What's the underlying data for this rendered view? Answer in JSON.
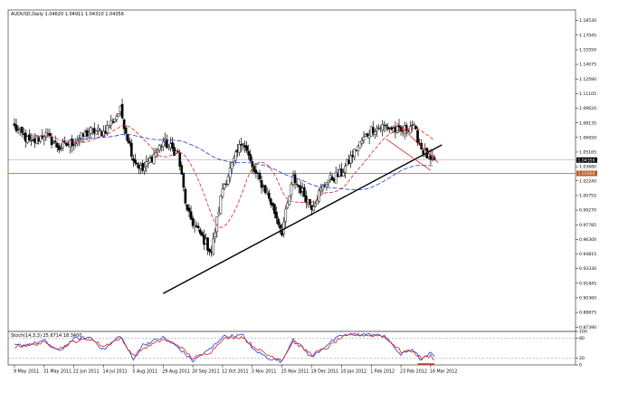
{
  "chart_data": [
    {
      "type": "candlestick",
      "header": "AUDUSD,Daily  1.04620 1.04911 1.04310 1.04356",
      "symbol": "AUDUSD",
      "timeframe": "Daily",
      "ohlc_last": {
        "open": 1.0462,
        "high": 1.04911,
        "low": 1.0431,
        "close": 1.04356
      },
      "ylim": [
        0.8695,
        1.196
      ],
      "y_ticks": [
        "1.18530",
        "1.17045",
        "1.15550",
        "1.14075",
        "1.12590",
        "1.11105",
        "1.09620",
        "1.08135",
        "1.06650",
        "1.05165",
        "1.03680",
        "1.02240",
        "1.00755",
        "0.99270",
        "0.97785",
        "0.96300",
        "0.94815",
        "0.93330",
        "0.91845",
        "0.90360",
        "0.88875",
        "0.87390"
      ],
      "current_price_label": "1.04356",
      "support_price_label": "1.03000",
      "x_ticks": [
        "9 May 2011",
        "31 May 2011",
        "22 Jun 2011",
        "14 Jul 2011",
        "5 Aug 2011",
        "29 Aug 2011",
        "20 Sep 2011",
        "12 Oct 2011",
        "3 Nov 2011",
        "25 Nov 2011",
        "19 Dec 2011",
        "10 Jan 2012",
        "1 Feb 2012",
        "23 Feb 2012",
        "16 Mar 2012"
      ],
      "close_anchors": [
        {
          "date": "9 May 2011",
          "close": 1.077
        },
        {
          "date": "20 May 2011",
          "close": 1.06
        },
        {
          "date": "31 May 2011",
          "close": 1.07
        },
        {
          "date": "10 Jun 2011",
          "close": 1.056
        },
        {
          "date": "22 Jun 2011",
          "close": 1.062
        },
        {
          "date": "5 Jul 2011",
          "close": 1.073
        },
        {
          "date": "14 Jul 2011",
          "close": 1.072
        },
        {
          "date": "27 Jul 2011",
          "close": 1.094
        },
        {
          "date": "5 Aug 2011",
          "close": 1.045
        },
        {
          "date": "12 Aug 2011",
          "close": 1.033
        },
        {
          "date": "29 Aug 2011",
          "close": 1.062
        },
        {
          "date": "8 Sep 2011",
          "close": 1.05
        },
        {
          "date": "15 Sep 2011",
          "close": 0.99
        },
        {
          "date": "20 Sep 2011",
          "close": 0.98
        },
        {
          "date": "4 Oct 2011",
          "close": 0.95
        },
        {
          "date": "12 Oct 2011",
          "close": 1.015
        },
        {
          "date": "27 Oct 2011",
          "close": 1.065
        },
        {
          "date": "3 Nov 2011",
          "close": 1.035
        },
        {
          "date": "15 Nov 2011",
          "close": 1.01
        },
        {
          "date": "25 Nov 2011",
          "close": 0.971
        },
        {
          "date": "5 Dec 2011",
          "close": 1.025
        },
        {
          "date": "19 Dec 2011",
          "close": 0.997
        },
        {
          "date": "29 Dec 2011",
          "close": 1.022
        },
        {
          "date": "10 Jan 2012",
          "close": 1.03
        },
        {
          "date": "20 Jan 2012",
          "close": 1.055
        },
        {
          "date": "1 Feb 2012",
          "close": 1.075
        },
        {
          "date": "10 Feb 2012",
          "close": 1.078
        },
        {
          "date": "23 Feb 2012",
          "close": 1.072
        },
        {
          "date": "2 Mar 2012",
          "close": 1.08
        },
        {
          "date": "9 Mar 2012",
          "close": 1.056
        },
        {
          "date": "16 Mar 2012",
          "close": 1.042
        },
        {
          "date": "20 Mar 2012",
          "close": 1.0436
        }
      ],
      "overlays": {
        "fast_ma": {
          "color": "#e02020",
          "style": "dashed"
        },
        "slow_ma": {
          "color": "#1a3fd8",
          "style": "dashed"
        },
        "support_level": {
          "value": 1.03,
          "color": "#b85a1e"
        },
        "current_level": {
          "value": 1.04356,
          "color": "#9a9a9a"
        },
        "trendline": {
          "color": "#000000",
          "from": {
            "date": "29 Aug 2011",
            "price": 0.908
          },
          "to": {
            "date": "26 Mar 2012",
            "price": 1.059
          }
        },
        "channel": {
          "color": "#e02020",
          "upper": [
            {
              "date": "21 Feb 2012",
              "price": 1.081
            },
            {
              "date": "22 Mar 2012",
              "price": 1.041
            }
          ],
          "lower": [
            {
              "date": "13 Feb 2012",
              "price": 1.065
            },
            {
              "date": "16 Mar 2012",
              "price": 1.033
            }
          ]
        }
      }
    },
    {
      "type": "line",
      "title": "Stoch(14,3,3) 25.6714 18.3400",
      "ylim": [
        0,
        100
      ],
      "y_ticks": [
        "100",
        "80",
        "20",
        "0"
      ],
      "levels": [
        80,
        20
      ],
      "series": [
        {
          "name": "%K",
          "color": "#1a3fd8",
          "anchors": [
            {
              "date": "9 May 2011",
              "value": 58
            },
            {
              "date": "20 May 2011",
              "value": 62
            },
            {
              "date": "31 May 2011",
              "value": 72
            },
            {
              "date": "10 Jun 2011",
              "value": 40
            },
            {
              "date": "22 Jun 2011",
              "value": 78
            },
            {
              "date": "5 Jul 2011",
              "value": 82
            },
            {
              "date": "14 Jul 2011",
              "value": 45
            },
            {
              "date": "27 Jul 2011",
              "value": 88
            },
            {
              "date": "5 Aug 2011",
              "value": 15
            },
            {
              "date": "12 Aug 2011",
              "value": 60
            },
            {
              "date": "29 Aug 2011",
              "value": 82
            },
            {
              "date": "8 Sep 2011",
              "value": 52
            },
            {
              "date": "20 Sep 2011",
              "value": 12
            },
            {
              "date": "4 Oct 2011",
              "value": 50
            },
            {
              "date": "12 Oct 2011",
              "value": 85
            },
            {
              "date": "27 Oct 2011",
              "value": 88
            },
            {
              "date": "3 Nov 2011",
              "value": 48
            },
            {
              "date": "15 Nov 2011",
              "value": 22
            },
            {
              "date": "25 Nov 2011",
              "value": 10
            },
            {
              "date": "5 Dec 2011",
              "value": 80
            },
            {
              "date": "19 Dec 2011",
              "value": 22
            },
            {
              "date": "29 Dec 2011",
              "value": 60
            },
            {
              "date": "10 Jan 2012",
              "value": 88
            },
            {
              "date": "20 Jan 2012",
              "value": 92
            },
            {
              "date": "1 Feb 2012",
              "value": 90
            },
            {
              "date": "10 Feb 2012",
              "value": 86
            },
            {
              "date": "23 Feb 2012",
              "value": 30
            },
            {
              "date": "2 Mar 2012",
              "value": 48
            },
            {
              "date": "9 Mar 2012",
              "value": 14
            },
            {
              "date": "16 Mar 2012",
              "value": 35
            },
            {
              "date": "20 Mar 2012",
              "value": 25.67
            }
          ]
        },
        {
          "name": "%D",
          "color": "#e02020",
          "anchors": [
            {
              "date": "9 May 2011",
              "value": 55
            },
            {
              "date": "20 May 2011",
              "value": 60
            },
            {
              "date": "31 May 2011",
              "value": 66
            },
            {
              "date": "10 Jun 2011",
              "value": 48
            },
            {
              "date": "22 Jun 2011",
              "value": 70
            },
            {
              "date": "5 Jul 2011",
              "value": 78
            },
            {
              "date": "14 Jul 2011",
              "value": 55
            },
            {
              "date": "27 Jul 2011",
              "value": 80
            },
            {
              "date": "5 Aug 2011",
              "value": 28
            },
            {
              "date": "12 Aug 2011",
              "value": 48
            },
            {
              "date": "29 Aug 2011",
              "value": 76
            },
            {
              "date": "8 Sep 2011",
              "value": 60
            },
            {
              "date": "20 Sep 2011",
              "value": 20
            },
            {
              "date": "4 Oct 2011",
              "value": 40
            },
            {
              "date": "12 Oct 2011",
              "value": 78
            },
            {
              "date": "27 Oct 2011",
              "value": 84
            },
            {
              "date": "3 Nov 2011",
              "value": 58
            },
            {
              "date": "15 Nov 2011",
              "value": 30
            },
            {
              "date": "25 Nov 2011",
              "value": 16
            },
            {
              "date": "5 Dec 2011",
              "value": 70
            },
            {
              "date": "19 Dec 2011",
              "value": 32
            },
            {
              "date": "29 Dec 2011",
              "value": 50
            },
            {
              "date": "10 Jan 2012",
              "value": 82
            },
            {
              "date": "20 Jan 2012",
              "value": 90
            },
            {
              "date": "1 Feb 2012",
              "value": 88
            },
            {
              "date": "10 Feb 2012",
              "value": 88
            },
            {
              "date": "23 Feb 2012",
              "value": 40
            },
            {
              "date": "2 Mar 2012",
              "value": 42
            },
            {
              "date": "9 Mar 2012",
              "value": 20
            },
            {
              "date": "16 Mar 2012",
              "value": 28
            },
            {
              "date": "20 Mar 2012",
              "value": 18.34
            }
          ]
        }
      ],
      "oversold_marker": {
        "color": "#e02020",
        "from": "7 Mar 2012",
        "to": "20 Mar 2012",
        "value": 3
      }
    }
  ]
}
